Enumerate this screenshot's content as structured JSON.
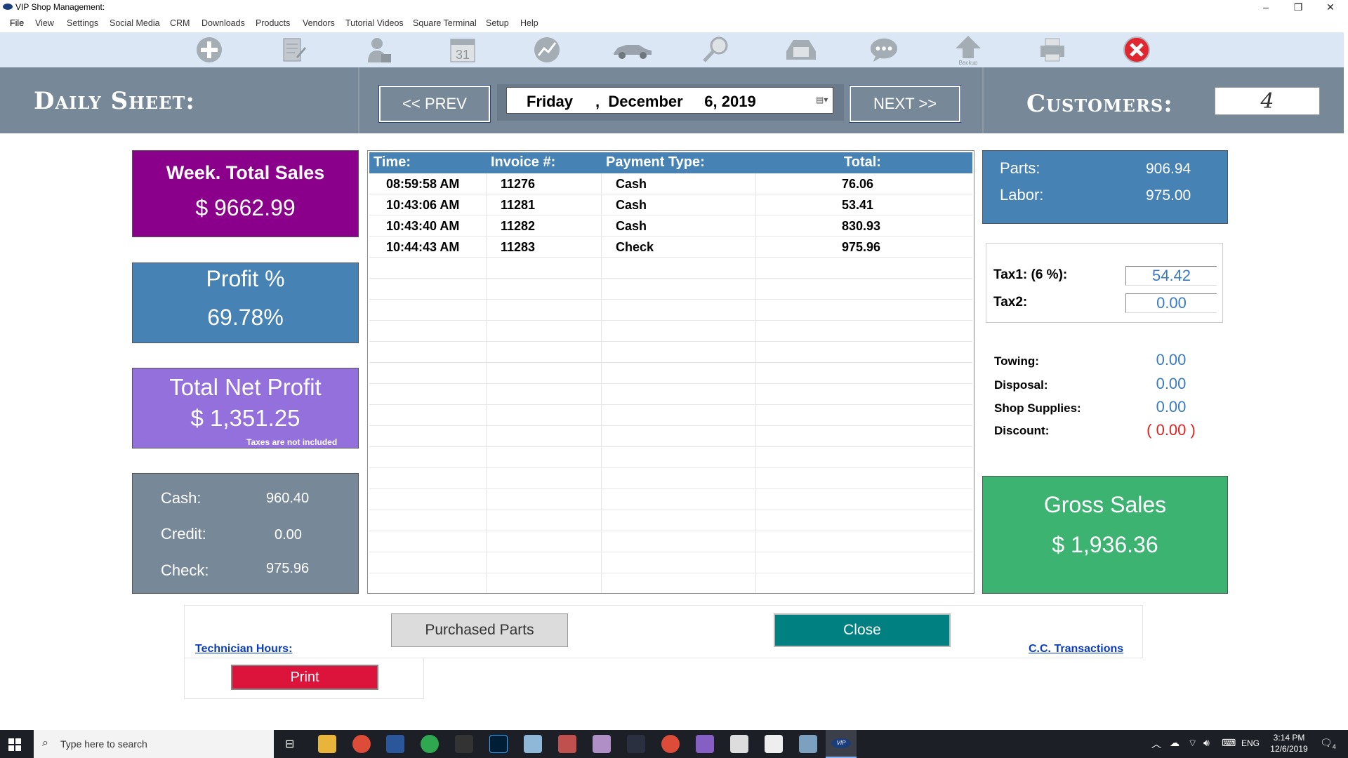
{
  "window": {
    "title": "VIP Shop Management:",
    "minimize": "–",
    "restore": "❐",
    "close": "✕"
  },
  "menu": [
    "File",
    "View",
    "Settings",
    "Social Media",
    "CRM",
    "Downloads",
    "Products",
    "Vendors",
    "Tutorial Videos",
    "Square Terminal",
    "Setup",
    "Help"
  ],
  "toolbar": {
    "icons": [
      "add-icon",
      "notes-icon",
      "user-icon",
      "calendar-icon",
      "chart-icon",
      "car-icon",
      "search-icon",
      "phone-icon",
      "chat-icon",
      "backup-icon",
      "printer-icon",
      "exit-icon"
    ],
    "calendar_day": "31",
    "backup_label": "Backup"
  },
  "header": {
    "title": "Daily Sheet:",
    "prev_label": "<<   PREV",
    "next_label": "NEXT   >>",
    "date_weekday": "Friday",
    "date_rest": ",  December     6, 2019",
    "customers_label": "Customers:",
    "customers_value": "4"
  },
  "left_cards": {
    "week_sales_label": "Week. Total Sales",
    "week_sales_value": "$ 9662.99",
    "profit_label": "Profit %",
    "profit_value": "69.78%",
    "net_profit_label": "Total Net Profit",
    "net_profit_value": "$ 1,351.25",
    "net_profit_note": "Taxes are not included",
    "cash_label": "Cash:",
    "cash_value": "960.40",
    "credit_label": "Credit:",
    "credit_value": "0.00",
    "check_label": "Check:",
    "check_value": "975.96"
  },
  "grid": {
    "columns": [
      "Time:",
      "Invoice #:",
      "Payment Type:",
      "Total:"
    ],
    "rows": [
      [
        "08:59:58  AM",
        "11276",
        "Cash",
        "76.06"
      ],
      [
        "10:43:06  AM",
        "11281",
        "Cash",
        "53.41"
      ],
      [
        "10:43:40  AM",
        "11282",
        "Cash",
        "830.93"
      ],
      [
        "10:44:43  AM",
        "11283",
        "Check",
        "975.96"
      ]
    ]
  },
  "right_panel": {
    "parts_label": "Parts:",
    "parts_value": "906.94",
    "labor_label": "Labor:",
    "labor_value": "975.00",
    "tax1_label": "Tax1: (6 %):",
    "tax1_value": "54.42",
    "tax2_label": "Tax2:",
    "tax2_value": "0.00",
    "towing_label": "Towing:",
    "towing_value": "0.00",
    "disposal_label": "Disposal:",
    "disposal_value": "0.00",
    "supplies_label": "Shop Supplies:",
    "supplies_value": "0.00",
    "discount_label": "Discount:",
    "discount_value": "( 0.00 )",
    "gross_label": "Gross Sales",
    "gross_value": "$ 1,936.36"
  },
  "footer": {
    "purchased_parts": "Purchased Parts",
    "close": "Close",
    "technician_hours": "Technician Hours:",
    "cc_transactions": "C.C. Transactions",
    "print": "Print"
  },
  "taskbar": {
    "search_placeholder": "Type here to search",
    "lang": "ENG",
    "time": "3:14 PM",
    "date": "12/6/2019",
    "notif_count": "4",
    "vip_label": "VIP"
  },
  "colors": {
    "week_sales": "#8b008b",
    "profit": "#4682b4",
    "net_profit": "#9370db",
    "cash_card": "#778899",
    "gross": "#3cb371",
    "close_btn": "#008080",
    "print_btn": "#dc143c",
    "discount": "#e02020"
  }
}
